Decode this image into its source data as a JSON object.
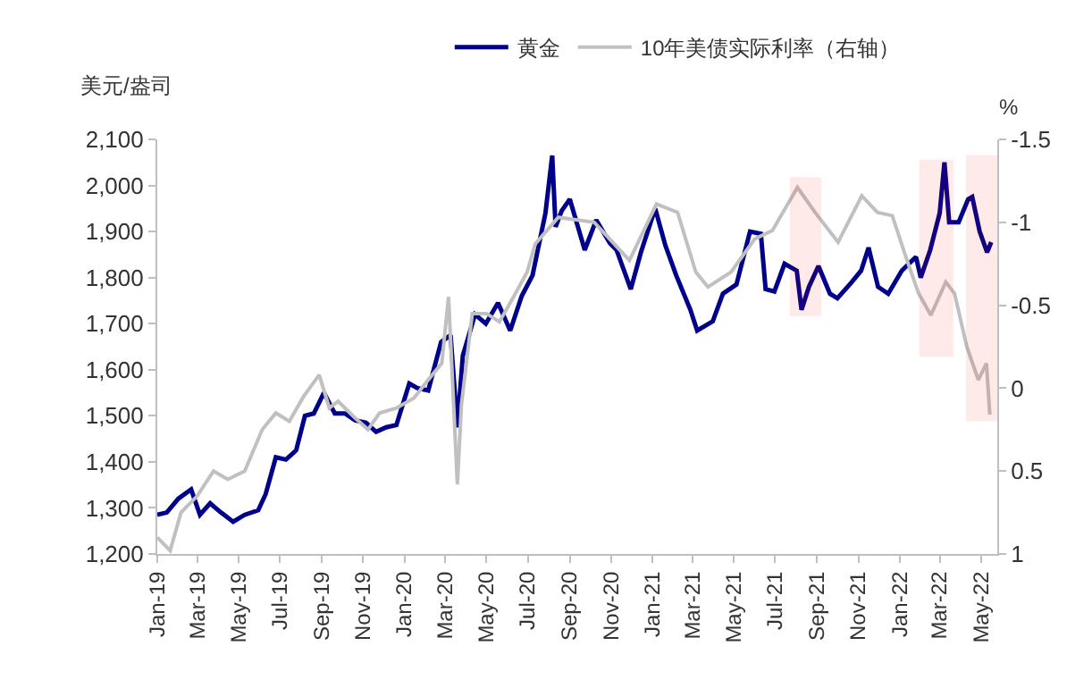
{
  "chart_data": {
    "type": "line",
    "ylabel": "美元/盎司",
    "y2label": "%",
    "legend": "top",
    "grid": false,
    "xlim": [
      "2019-01-01",
      "2022-05-25"
    ],
    "ylim": [
      1200,
      2100
    ],
    "yticks": [
      {
        "value": 1200,
        "label": "1,200"
      },
      {
        "value": 1300,
        "label": "1,300"
      },
      {
        "value": 1400,
        "label": "1,400"
      },
      {
        "value": 1500,
        "label": "1,500"
      },
      {
        "value": 1600,
        "label": "1,600"
      },
      {
        "value": 1700,
        "label": "1,700"
      },
      {
        "value": 1800,
        "label": "1,800"
      },
      {
        "value": 1900,
        "label": "1,900"
      },
      {
        "value": 2000,
        "label": "2,000"
      },
      {
        "value": 2100,
        "label": "2,100"
      }
    ],
    "y2lim": [
      1,
      -1.5
    ],
    "y2ticks": [
      -1.5,
      -1,
      -0.5,
      0,
      0.5,
      1
    ],
    "xticks": [
      {
        "value": "2019-01-01",
        "label": "Jan-19"
      },
      {
        "value": "2019-03-01",
        "label": "Mar-19"
      },
      {
        "value": "2019-05-01",
        "label": "May-19"
      },
      {
        "value": "2019-07-01",
        "label": "Jul-19"
      },
      {
        "value": "2019-09-01",
        "label": "Sep-19"
      },
      {
        "value": "2019-11-01",
        "label": "Nov-19"
      },
      {
        "value": "2020-01-01",
        "label": "Jan-20"
      },
      {
        "value": "2020-03-01",
        "label": "Mar-20"
      },
      {
        "value": "2020-05-01",
        "label": "May-20"
      },
      {
        "value": "2020-07-01",
        "label": "Jul-20"
      },
      {
        "value": "2020-09-01",
        "label": "Sep-20"
      },
      {
        "value": "2020-11-01",
        "label": "Nov-20"
      },
      {
        "value": "2021-01-01",
        "label": "Jan-21"
      },
      {
        "value": "2021-03-01",
        "label": "Mar-21"
      },
      {
        "value": "2021-05-01",
        "label": "May-21"
      },
      {
        "value": "2021-07-01",
        "label": "Jul-21"
      },
      {
        "value": "2021-09-01",
        "label": "Sep-21"
      },
      {
        "value": "2021-11-01",
        "label": "Nov-21"
      },
      {
        "value": "2022-01-01",
        "label": "Jan-22"
      },
      {
        "value": "2022-03-01",
        "label": "Mar-22"
      },
      {
        "value": "2022-05-01",
        "label": "May-22"
      }
    ],
    "bands": [
      {
        "axis": "x",
        "from": "2021-07-24",
        "to": "2021-09-06",
        "color": "#ff0000"
      },
      {
        "axis": "x",
        "from": "2022-01-31",
        "to": "2022-03-20",
        "color": "#ff0000"
      },
      {
        "axis": "x",
        "from": "2022-04-10",
        "to": "2022-05-25",
        "color": "#ff0000"
      }
    ],
    "series": [
      {
        "name": "黄金",
        "color": "#00008b",
        "x": [
          "2019-01-01",
          "2019-01-15",
          "2019-02-01",
          "2019-02-20",
          "2019-03-05",
          "2019-03-20",
          "2019-04-05",
          "2019-04-23",
          "2019-05-10",
          "2019-05-30",
          "2019-06-10",
          "2019-06-25",
          "2019-07-10",
          "2019-07-25",
          "2019-08-07",
          "2019-08-20",
          "2019-09-04",
          "2019-09-20",
          "2019-10-05",
          "2019-10-20",
          "2019-11-05",
          "2019-11-20",
          "2019-12-05",
          "2019-12-20",
          "2020-01-08",
          "2020-01-20",
          "2020-02-05",
          "2020-02-24",
          "2020-03-09",
          "2020-03-19",
          "2020-03-27",
          "2020-04-14",
          "2020-04-30",
          "2020-05-18",
          "2020-06-05",
          "2020-06-22",
          "2020-07-08",
          "2020-07-27",
          "2020-08-06",
          "2020-08-11",
          "2020-08-20",
          "2020-09-01",
          "2020-09-23",
          "2020-10-10",
          "2020-10-30",
          "2020-11-09",
          "2020-11-30",
          "2020-12-15",
          "2021-01-05",
          "2021-01-20",
          "2021-02-05",
          "2021-02-26",
          "2021-03-08",
          "2021-03-31",
          "2021-04-15",
          "2021-05-05",
          "2021-05-25",
          "2021-06-10",
          "2021-06-17",
          "2021-06-30",
          "2021-07-15",
          "2021-08-02",
          "2021-08-09",
          "2021-08-20",
          "2021-09-03",
          "2021-09-20",
          "2021-10-01",
          "2021-10-22",
          "2021-11-05",
          "2021-11-16",
          "2021-11-30",
          "2021-12-15",
          "2022-01-04",
          "2022-01-25",
          "2022-02-01",
          "2022-02-15",
          "2022-03-01",
          "2022-03-08",
          "2022-03-15",
          "2022-03-29",
          "2022-04-12",
          "2022-04-18",
          "2022-04-29",
          "2022-05-10",
          "2022-05-16"
        ],
        "values": [
          1285,
          1290,
          1320,
          1340,
          1285,
          1310,
          1290,
          1270,
          1285,
          1295,
          1330,
          1410,
          1405,
          1425,
          1500,
          1505,
          1550,
          1505,
          1505,
          1490,
          1485,
          1465,
          1475,
          1480,
          1570,
          1560,
          1555,
          1660,
          1675,
          1475,
          1630,
          1720,
          1700,
          1745,
          1685,
          1760,
          1805,
          1940,
          2065,
          1910,
          1945,
          1970,
          1860,
          1925,
          1875,
          1860,
          1775,
          1855,
          1950,
          1870,
          1805,
          1730,
          1685,
          1705,
          1765,
          1785,
          1900,
          1895,
          1775,
          1770,
          1830,
          1815,
          1730,
          1780,
          1825,
          1765,
          1755,
          1790,
          1815,
          1865,
          1780,
          1765,
          1815,
          1845,
          1800,
          1860,
          1940,
          2050,
          1920,
          1920,
          1970,
          1975,
          1900,
          1855,
          1877
        ]
      },
      {
        "name": "10年美债实际利率（右轴）",
        "color": "#c0c0c0",
        "axis": "y2",
        "x": [
          "2019-01-01",
          "2019-01-20",
          "2019-02-05",
          "2019-03-01",
          "2019-03-25",
          "2019-04-15",
          "2019-05-10",
          "2019-06-05",
          "2019-06-25",
          "2019-07-15",
          "2019-08-05",
          "2019-08-28",
          "2019-09-12",
          "2019-09-25",
          "2019-10-20",
          "2019-11-08",
          "2019-11-25",
          "2019-12-20",
          "2020-01-15",
          "2020-02-05",
          "2020-02-25",
          "2020-03-06",
          "2020-03-19",
          "2020-03-25",
          "2020-04-10",
          "2020-05-01",
          "2020-05-20",
          "2020-06-10",
          "2020-06-30",
          "2020-07-12",
          "2020-08-15",
          "2020-10-07",
          "2020-11-28",
          "2021-01-07",
          "2021-02-07",
          "2021-03-06",
          "2021-03-24",
          "2021-04-27",
          "2021-06-01",
          "2021-06-27",
          "2021-08-03",
          "2021-08-29",
          "2021-10-02",
          "2021-11-06",
          "2021-11-29",
          "2021-12-21",
          "2022-01-11",
          "2022-01-29",
          "2022-02-16",
          "2022-03-10",
          "2022-03-23",
          "2022-04-10",
          "2022-04-27",
          "2022-05-09",
          "2022-05-14"
        ],
        "values": [
          0.9,
          0.98,
          0.75,
          0.65,
          0.5,
          0.55,
          0.5,
          0.25,
          0.15,
          0.2,
          0.05,
          -0.08,
          0.12,
          0.08,
          0.18,
          0.25,
          0.15,
          0.12,
          0.06,
          -0.05,
          -0.15,
          -0.55,
          0.58,
          0.1,
          -0.45,
          -0.45,
          -0.4,
          -0.55,
          -0.7,
          -0.87,
          -1.03,
          -1.0,
          -0.77,
          -1.11,
          -1.06,
          -0.7,
          -0.61,
          -0.7,
          -0.9,
          -0.95,
          -1.21,
          -1.06,
          -0.88,
          -1.16,
          -1.06,
          -1.04,
          -0.78,
          -0.57,
          -0.44,
          -0.64,
          -0.57,
          -0.25,
          -0.05,
          -0.15,
          0.16
        ]
      }
    ]
  }
}
